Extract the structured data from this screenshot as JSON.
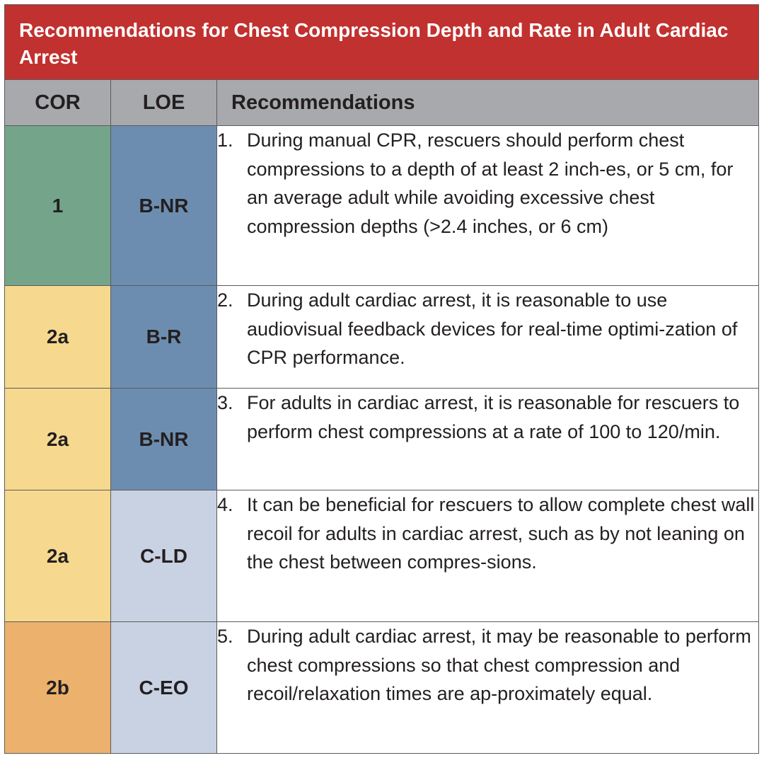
{
  "table": {
    "title": "Recommendations for Chest Compression Depth and Rate in Adult Cardiac Arrest",
    "headers": {
      "cor": "COR",
      "loe": "LOE",
      "recommendations": "Recommendations"
    },
    "rows": [
      {
        "cor": "1",
        "loe": "B-NR",
        "number": "1.",
        "text": "During manual CPR, rescuers should perform chest compressions to a depth of at least 2 inch-es, or 5 cm, for an average adult while avoiding excessive chest compression depths (>2.4 inches, or 6 cm)"
      },
      {
        "cor": "2a",
        "loe": "B-R",
        "number": "2.",
        "text": "During adult cardiac arrest, it is reasonable to use audiovisual feedback devices for real-time optimi-zation of CPR performance."
      },
      {
        "cor": "2a",
        "loe": "B-NR",
        "number": "3.",
        "text": "For adults in cardiac arrest, it is reasonable for rescuers to perform chest compressions at a rate of 100 to 120/min."
      },
      {
        "cor": "2a",
        "loe": "C-LD",
        "number": "4.",
        "text": "It can be beneficial for rescuers to allow complete chest wall recoil for adults in cardiac arrest, such as by not leaning on the chest between compres-sions."
      },
      {
        "cor": "2b",
        "loe": "C-EO",
        "number": "5.",
        "text": "During adult cardiac arrest, it may be reasonable to perform chest compressions so that chest compression and recoil/relaxation times are ap-proximately equal."
      }
    ]
  },
  "colors": {
    "title_bar": "#c1312f",
    "header_row": "#a8a9ac",
    "cor_1": "#74a58a",
    "cor_2a": "#f6d98f",
    "cor_2b": "#ecb16c",
    "loe_b": "#6d8db0",
    "loe_c": "#c8d2e3"
  }
}
